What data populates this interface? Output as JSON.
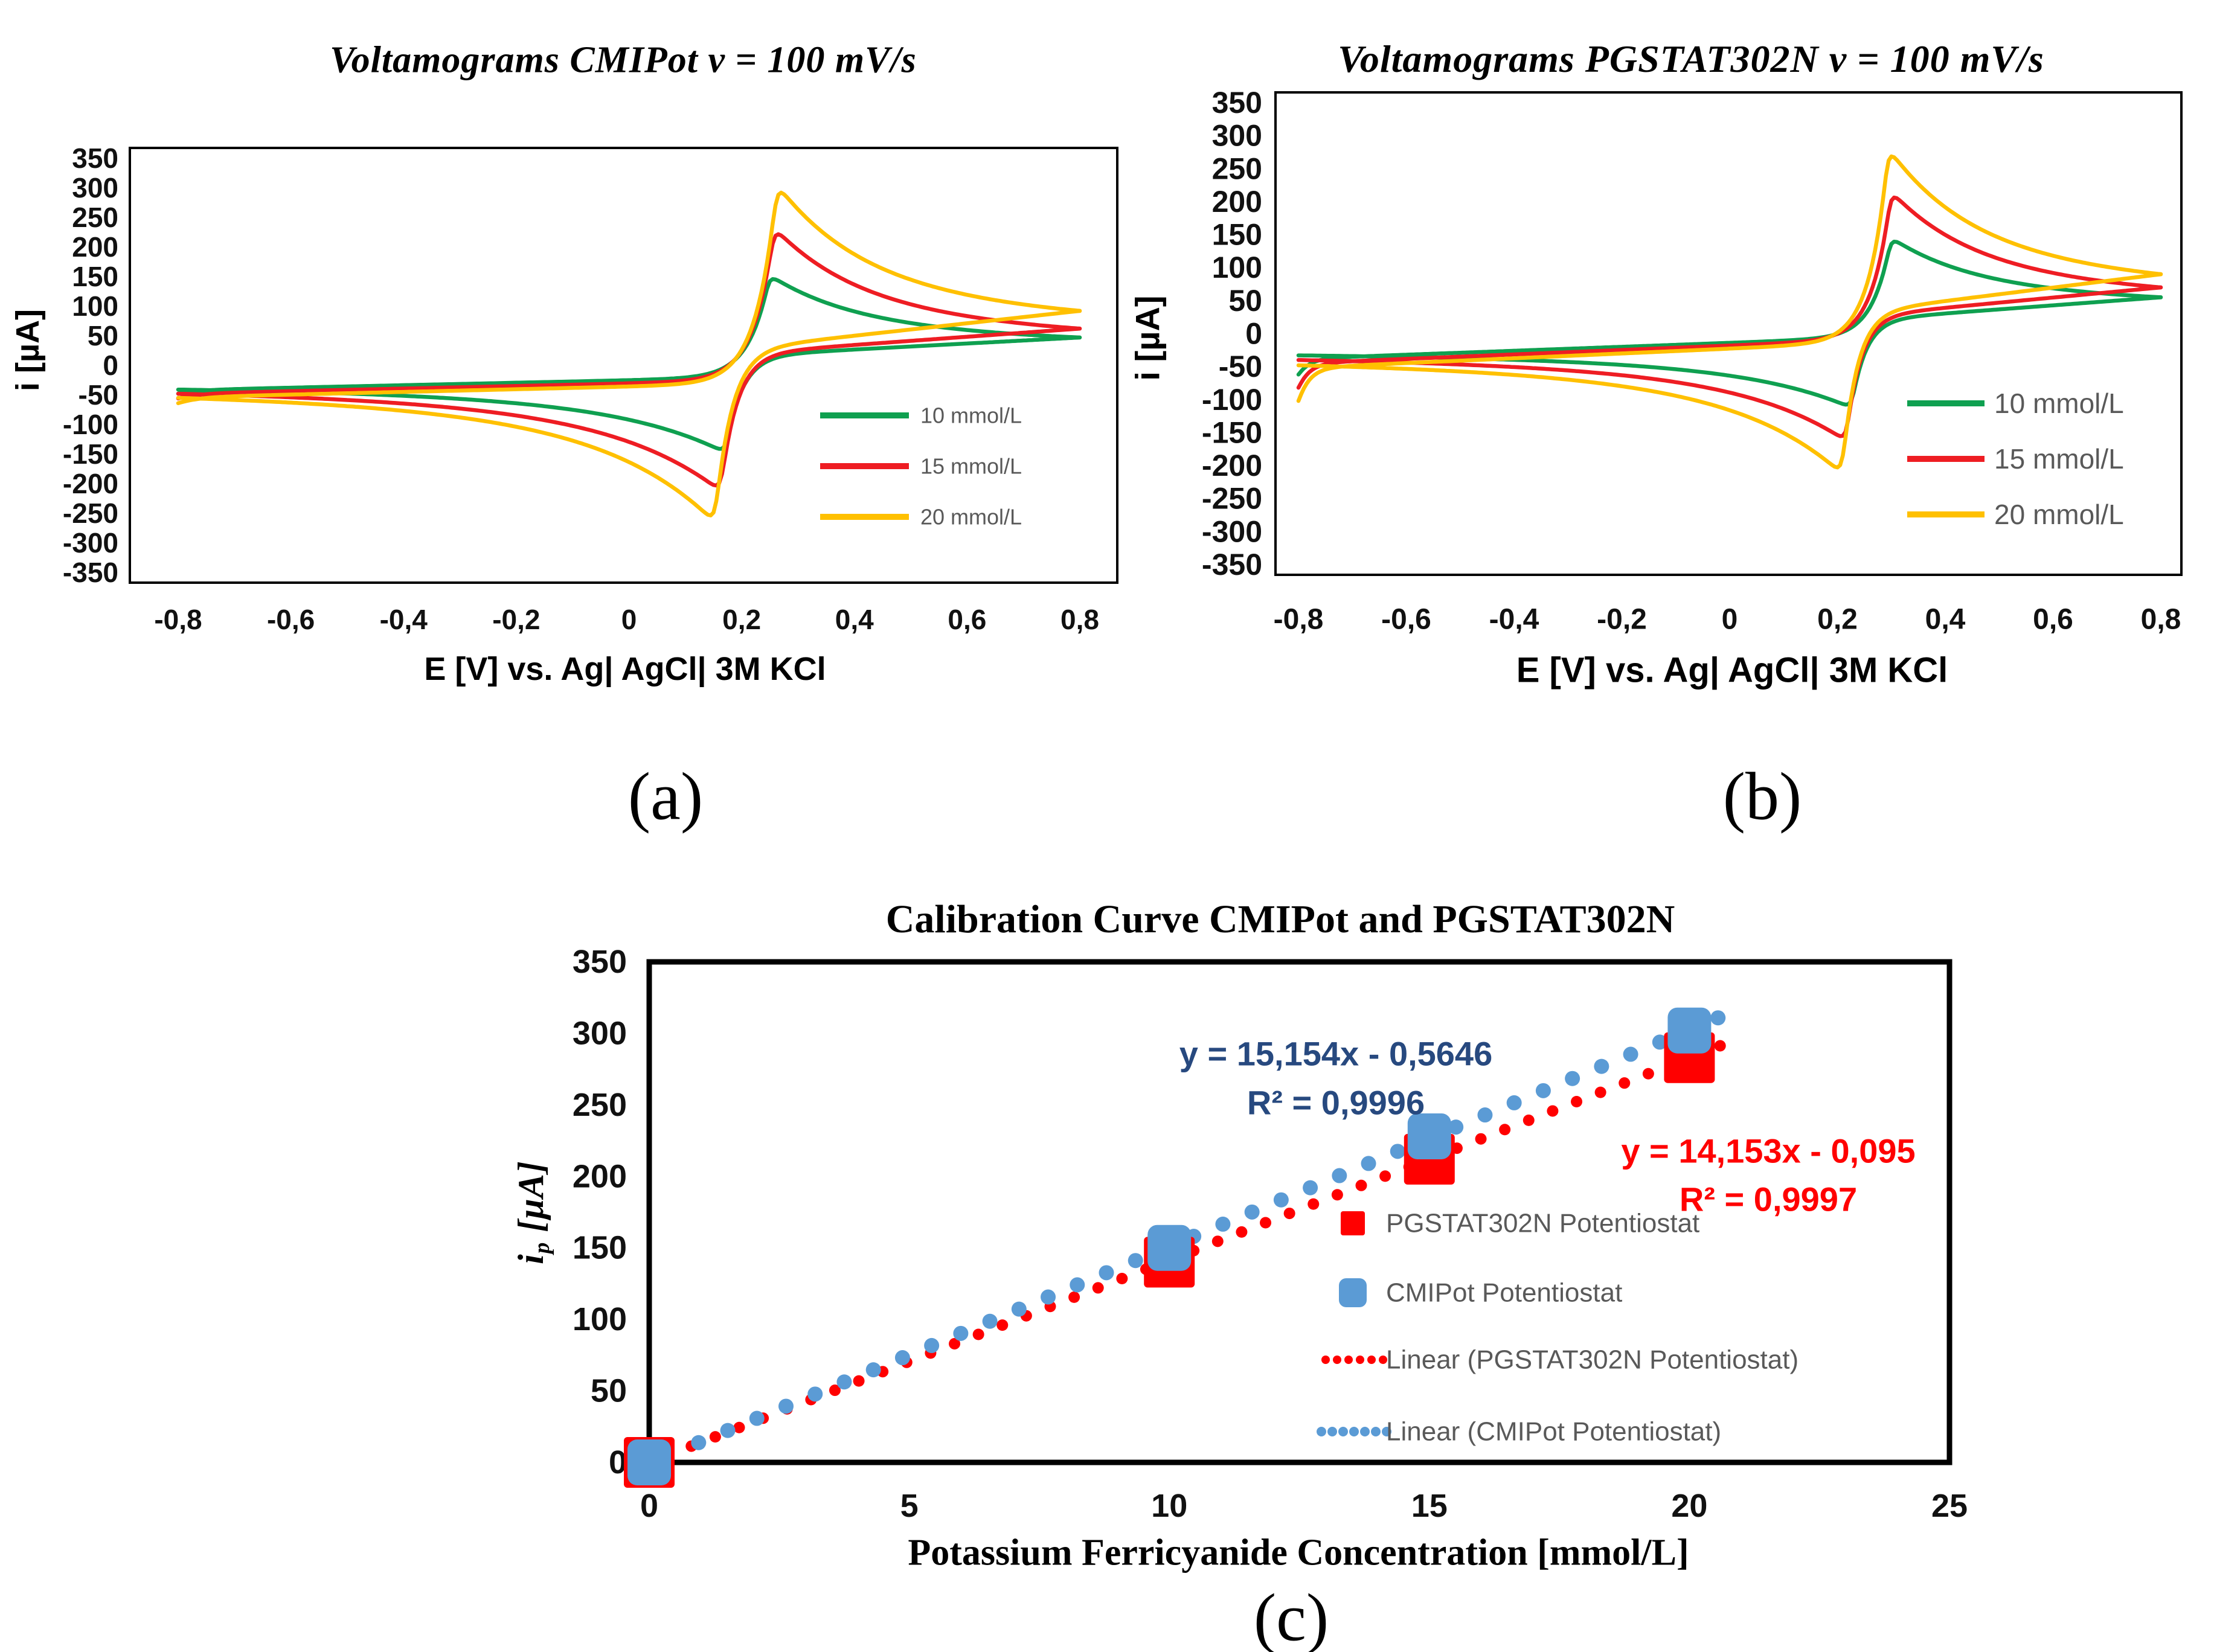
{
  "figure": {
    "captions": {
      "a": "(a)",
      "b": "(b)",
      "c": "(c)"
    },
    "background": "#FFFFFF"
  },
  "chart_data": [
    {
      "id": "voltamograms-cmipot",
      "type": "line",
      "title": "Voltamograms CMIPot v = 100 mV/s",
      "xlabel": "E [V] vs. Ag| AgCl| 3M KCl",
      "ylabel": "i [µA]",
      "xlim": [
        -0.8,
        0.8
      ],
      "ylim": [
        -350,
        350
      ],
      "x_ticks": [
        -0.8,
        -0.6,
        -0.4,
        -0.2,
        0,
        0.2,
        0.4,
        0.6,
        0.8
      ],
      "y_ticks": [
        350,
        300,
        250,
        200,
        150,
        100,
        50,
        0,
        -50,
        -100,
        -150,
        -200,
        -250,
        -300,
        -350
      ],
      "decimal_separator": ",",
      "grid": false,
      "legend_position": "inside-lower-right",
      "legend_text_color": "#595959",
      "series": [
        {
          "name": "10 mmol/L",
          "color": "#0FA050",
          "anodic_peak": {
            "E": 0.25,
            "i": 152
          },
          "cathodic_peak": {
            "E": 0.17,
            "i": -147
          },
          "sweep_start_i": -48,
          "forward_base_i": -20,
          "switch_i": 47,
          "reverse_base_i": 15,
          "return_i": -41,
          "shape": {
            "b0": -42,
            "dip_w": 0.035,
            "rise_w": 0.16,
            "decay_w_f": 0.18,
            "rise_w_r": 0.13,
            "decay_w_r": 0.22
          }
        },
        {
          "name": "15 mmol/L",
          "color": "#EE1D23",
          "anodic_peak": {
            "E": 0.258,
            "i": 232
          },
          "cathodic_peak": {
            "E": 0.162,
            "i": -212
          },
          "sweep_start_i": -56,
          "forward_base_i": -25,
          "switch_i": 62,
          "reverse_base_i": 18,
          "return_i": -48,
          "shape": {
            "b0": -48,
            "dip_w": 0.035,
            "rise_w": 0.16,
            "decay_w_f": 0.18,
            "rise_w_r": 0.13,
            "decay_w_r": 0.22
          }
        },
        {
          "name": "20 mmol/L",
          "color": "#FFC000",
          "anodic_peak": {
            "E": 0.263,
            "i": 305
          },
          "cathodic_peak": {
            "E": 0.152,
            "i": -265
          },
          "sweep_start_i": -64,
          "forward_base_i": -30,
          "switch_i": 92,
          "reverse_base_i": 24,
          "return_i": -55,
          "shape": {
            "b0": -54,
            "dip_w": 0.035,
            "rise_w": 0.16,
            "decay_w_f": 0.18,
            "rise_w_r": 0.13,
            "decay_w_r": 0.22
          }
        }
      ]
    },
    {
      "id": "voltamograms-pgstat302n",
      "type": "line",
      "title": "Voltamograms PGSTAT302N v = 100 mV/s",
      "xlabel": "E [V] vs. Ag| AgCl| 3M KCl",
      "ylabel": "i [µA]",
      "xlim": [
        -0.8,
        0.8
      ],
      "ylim": [
        -350,
        350
      ],
      "x_ticks": [
        -0.8,
        -0.6,
        -0.4,
        -0.2,
        0,
        0.2,
        0.4,
        0.6,
        0.8
      ],
      "y_ticks": [
        350,
        300,
        250,
        200,
        150,
        100,
        50,
        0,
        -50,
        -100,
        -150,
        -200,
        -250,
        -300,
        -350
      ],
      "decimal_separator": ",",
      "grid": false,
      "legend_position": "inside-right",
      "legend_text_color": "#595959",
      "series": [
        {
          "name": "10 mmol/L",
          "color": "#0FA050",
          "anodic_peak": {
            "E": 0.3,
            "i": 145
          },
          "cathodic_peak": {
            "E": 0.225,
            "i": -112
          },
          "sweep_start_i": -62,
          "forward_base_i": -5,
          "switch_i": 55,
          "reverse_base_i": 20,
          "return_i": -33,
          "shape": {
            "b0": -38,
            "dip_w": 0.02,
            "rise_w": 0.15,
            "decay_w_f": 0.18,
            "rise_w_r": 0.12,
            "decay_w_r": 0.22
          }
        },
        {
          "name": "15 mmol/L",
          "color": "#EE1D23",
          "anodic_peak": {
            "E": 0.3,
            "i": 215
          },
          "cathodic_peak": {
            "E": 0.215,
            "i": -162
          },
          "sweep_start_i": -82,
          "forward_base_i": -8,
          "switch_i": 70,
          "reverse_base_i": 25,
          "return_i": -40,
          "shape": {
            "b0": -45,
            "dip_w": 0.02,
            "rise_w": 0.15,
            "decay_w_f": 0.18,
            "rise_w_r": 0.12,
            "decay_w_r": 0.22
          }
        },
        {
          "name": "20 mmol/L",
          "color": "#FFC000",
          "anodic_peak": {
            "E": 0.295,
            "i": 280
          },
          "cathodic_peak": {
            "E": 0.208,
            "i": -212
          },
          "sweep_start_i": -102,
          "forward_base_i": -12,
          "switch_i": 90,
          "reverse_base_i": 30,
          "return_i": -48,
          "shape": {
            "b0": -52,
            "dip_w": 0.02,
            "rise_w": 0.15,
            "decay_w_f": 0.18,
            "rise_w_r": 0.12,
            "decay_w_r": 0.22
          }
        }
      ]
    },
    {
      "id": "calibration-curve",
      "type": "scatter",
      "title": "Calibration Curve CMIPot and PGSTAT302N",
      "xlabel": "Potassium Ferricyanide Concentration [mmol/L]",
      "ylabel": "ip [µA]",
      "ylabel_parts": {
        "main": "i",
        "sub": "p",
        "unit": " [µA]"
      },
      "xlim": [
        0,
        25
      ],
      "ylim": [
        0,
        350
      ],
      "x_ticks": [
        0,
        5,
        10,
        15,
        20,
        25
      ],
      "y_ticks": [
        0,
        50,
        100,
        150,
        200,
        250,
        300,
        350
      ],
      "decimal_separator": ",",
      "grid": false,
      "legend_position": "inside-right",
      "legend_text_color": "#595959",
      "series": [
        {
          "name": "PGSTAT302N Potentiostat",
          "marker": "square",
          "color": "#FF0000",
          "x": [
            0,
            10,
            15,
            20
          ],
          "y": [
            0,
            140,
            212,
            283
          ],
          "fit": {
            "label": "Linear (PGSTAT302N Potentiostat)",
            "equation": "y = 14,153x - 0,095",
            "r2": "R² = 0,9997",
            "slope": 14.153,
            "intercept": -0.095,
            "color": "#FF0000",
            "equation_color": "#FF0000",
            "line_range": [
              0.35,
              20.6
            ],
            "dot_step": 0.46,
            "dot_radius": 9.5
          }
        },
        {
          "name": "CMIPot Potentiostat",
          "marker": "rounded-square",
          "color": "#5B9BD5",
          "x": [
            0,
            10,
            15,
            20
          ],
          "y": [
            0,
            150,
            228,
            302
          ],
          "fit": {
            "label": "Linear (CMIPot Potentiostat)",
            "equation": "y = 15,154x - 0,5646",
            "r2": "R² = 0,9996",
            "slope": 15.154,
            "intercept": -0.5646,
            "color": "#5B9BD5",
            "equation_color": "#27497F",
            "line_range": [
              0.95,
              20.9
            ],
            "dot_step": 0.56,
            "dot_radius": 12.5
          }
        }
      ]
    }
  ]
}
